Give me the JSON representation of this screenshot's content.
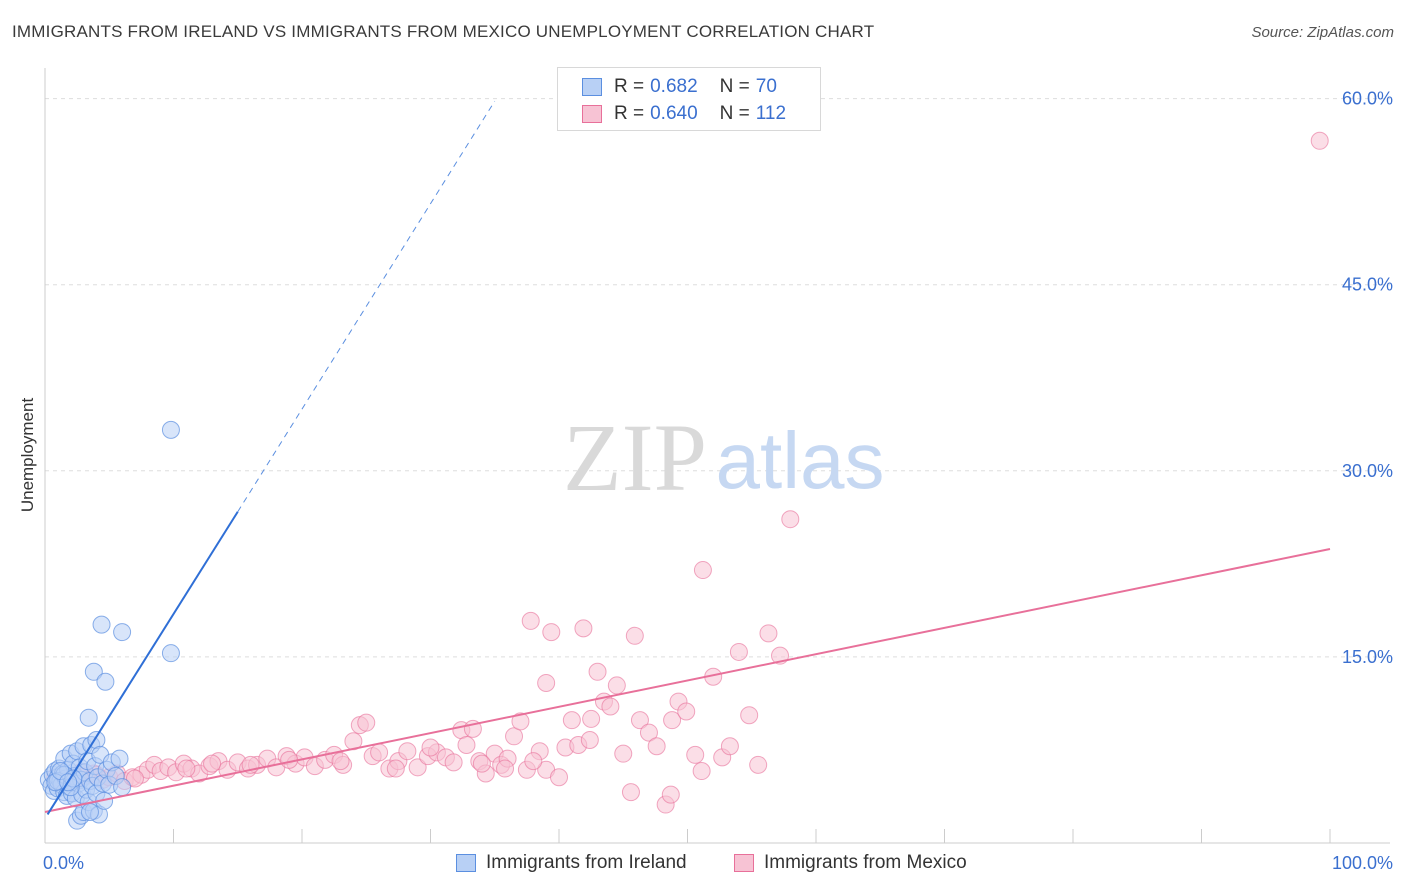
{
  "title": "IMMIGRANTS FROM IRELAND VS IMMIGRANTS FROM MEXICO UNEMPLOYMENT CORRELATION CHART",
  "source": "Source: ZipAtlas.com",
  "watermark": {
    "zip": "ZIP",
    "atlas": "atlas"
  },
  "legend_top": {
    "ireland": {
      "r_label": "R =",
      "r_value": "0.682",
      "n_label": "N =",
      "n_value": "70"
    },
    "mexico": {
      "r_label": "R =",
      "r_value": "0.640",
      "n_label": "N =",
      "n_value": "112"
    }
  },
  "legend_bottom": {
    "ireland": "Immigrants from Ireland",
    "mexico": "Immigrants from Mexico"
  },
  "colors": {
    "ireland": "#5b8fe0",
    "ireland_fill": "#b8d0f5",
    "mexico": "#e8709a",
    "mexico_fill": "#f7c3d4",
    "tick_text": "#3a6fcf",
    "grid": "#dddddd"
  },
  "chart_data": {
    "type": "scatter",
    "xlabel": "",
    "ylabel": "Unemployment",
    "xlim": [
      0,
      100
    ],
    "ylim": [
      0,
      62
    ],
    "x_tick_labels": [
      "0.0%",
      "100.0%"
    ],
    "y_ticks": [
      15,
      30,
      45,
      60
    ],
    "y_tick_labels": [
      "15.0%",
      "30.0%",
      "45.0%",
      "60.0%"
    ],
    "grid": true,
    "series": [
      {
        "name": "Immigrants from Ireland",
        "trend": {
          "x0": 0.2,
          "y0": 2.3,
          "x1": 15.0,
          "y1": 26.7,
          "dash_to_x": 35.0,
          "dash_to_y": 59.8
        },
        "points": [
          [
            0.3,
            5.1
          ],
          [
            0.5,
            4.6
          ],
          [
            0.6,
            5.5
          ],
          [
            0.7,
            4.2
          ],
          [
            0.8,
            5.8
          ],
          [
            0.9,
            4.9
          ],
          [
            1.0,
            5.3
          ],
          [
            1.0,
            4.4
          ],
          [
            1.1,
            6.0
          ],
          [
            1.2,
            5.0
          ],
          [
            1.3,
            4.7
          ],
          [
            1.4,
            5.6
          ],
          [
            1.5,
            4.1
          ],
          [
            1.5,
            6.8
          ],
          [
            1.6,
            5.2
          ],
          [
            1.7,
            3.8
          ],
          [
            1.8,
            5.9
          ],
          [
            1.9,
            4.5
          ],
          [
            2.0,
            7.2
          ],
          [
            2.0,
            5.0
          ],
          [
            2.1,
            4.0
          ],
          [
            2.2,
            6.4
          ],
          [
            2.3,
            5.4
          ],
          [
            2.4,
            3.6
          ],
          [
            2.5,
            7.4
          ],
          [
            2.5,
            1.8
          ],
          [
            2.6,
            4.8
          ],
          [
            2.7,
            6.1
          ],
          [
            2.8,
            5.1
          ],
          [
            2.8,
            2.2
          ],
          [
            2.9,
            3.9
          ],
          [
            3.0,
            7.8
          ],
          [
            3.0,
            2.5
          ],
          [
            3.1,
            5.7
          ],
          [
            3.2,
            4.3
          ],
          [
            3.3,
            6.6
          ],
          [
            3.4,
            3.3
          ],
          [
            3.4,
            10.1
          ],
          [
            3.5,
            5.0
          ],
          [
            3.6,
            7.9
          ],
          [
            3.7,
            4.6
          ],
          [
            3.8,
            13.8
          ],
          [
            3.8,
            2.6
          ],
          [
            3.9,
            6.2
          ],
          [
            4.0,
            4.0
          ],
          [
            4.0,
            8.3
          ],
          [
            4.1,
            5.3
          ],
          [
            4.2,
            2.3
          ],
          [
            4.3,
            7.1
          ],
          [
            4.4,
            17.6
          ],
          [
            4.5,
            4.8
          ],
          [
            4.6,
            3.4
          ],
          [
            4.7,
            13.0
          ],
          [
            4.8,
            5.9
          ],
          [
            5.0,
            4.7
          ],
          [
            5.2,
            6.5
          ],
          [
            5.5,
            5.4
          ],
          [
            5.8,
            6.8
          ],
          [
            6.0,
            4.5
          ],
          [
            6.0,
            17.0
          ],
          [
            1.0,
            5.0
          ],
          [
            1.5,
            5.5
          ],
          [
            2.0,
            4.5
          ],
          [
            0.8,
            4.9
          ],
          [
            1.2,
            5.8
          ],
          [
            2.2,
            5.2
          ],
          [
            9.8,
            33.3
          ],
          [
            9.8,
            15.3
          ],
          [
            1.8,
            4.9
          ],
          [
            3.5,
            2.5
          ]
        ]
      },
      {
        "name": "Immigrants from Mexico",
        "trend": {
          "x0": 0.0,
          "y0": 2.5,
          "x1": 100.0,
          "y1": 23.7
        },
        "points": [
          [
            0.8,
            5.3
          ],
          [
            1.5,
            5.0
          ],
          [
            2.0,
            4.8
          ],
          [
            2.5,
            5.2
          ],
          [
            3.2,
            5.4
          ],
          [
            3.8,
            5.6
          ],
          [
            4.5,
            5.1
          ],
          [
            5.0,
            5.3
          ],
          [
            5.6,
            5.6
          ],
          [
            6.2,
            5.0
          ],
          [
            6.8,
            5.3
          ],
          [
            7.5,
            5.5
          ],
          [
            8.0,
            5.9
          ],
          [
            8.5,
            6.3
          ],
          [
            9.0,
            5.8
          ],
          [
            9.6,
            6.1
          ],
          [
            10.2,
            5.7
          ],
          [
            10.8,
            6.4
          ],
          [
            11.4,
            6.0
          ],
          [
            12.0,
            5.6
          ],
          [
            12.8,
            6.2
          ],
          [
            13.5,
            6.6
          ],
          [
            14.2,
            5.9
          ],
          [
            15.0,
            6.5
          ],
          [
            15.8,
            6.0
          ],
          [
            16.5,
            6.3
          ],
          [
            17.3,
            6.8
          ],
          [
            18.0,
            6.1
          ],
          [
            18.8,
            7.0
          ],
          [
            19.5,
            6.4
          ],
          [
            20.2,
            6.9
          ],
          [
            21.0,
            6.2
          ],
          [
            21.8,
            6.7
          ],
          [
            22.5,
            7.1
          ],
          [
            23.2,
            6.3
          ],
          [
            24.0,
            8.2
          ],
          [
            24.5,
            9.5
          ],
          [
            25.0,
            9.7
          ],
          [
            25.5,
            7.0
          ],
          [
            26.0,
            7.3
          ],
          [
            26.8,
            6.0
          ],
          [
            27.5,
            6.6
          ],
          [
            28.2,
            7.4
          ],
          [
            29.0,
            6.1
          ],
          [
            29.8,
            7.0
          ],
          [
            30.5,
            7.3
          ],
          [
            31.2,
            6.9
          ],
          [
            31.8,
            6.5
          ],
          [
            32.4,
            9.1
          ],
          [
            32.8,
            7.9
          ],
          [
            33.3,
            9.2
          ],
          [
            33.8,
            6.6
          ],
          [
            34.3,
            5.6
          ],
          [
            35.0,
            7.2
          ],
          [
            35.5,
            6.3
          ],
          [
            36.0,
            6.8
          ],
          [
            36.5,
            8.6
          ],
          [
            37.0,
            9.8
          ],
          [
            37.5,
            5.9
          ],
          [
            37.8,
            17.9
          ],
          [
            38.5,
            7.4
          ],
          [
            39.0,
            5.9
          ],
          [
            39.4,
            17.0
          ],
          [
            39.0,
            12.9
          ],
          [
            40.0,
            5.3
          ],
          [
            40.5,
            7.7
          ],
          [
            41.0,
            9.9
          ],
          [
            41.5,
            7.9
          ],
          [
            41.9,
            17.3
          ],
          [
            42.4,
            8.3
          ],
          [
            43.0,
            13.8
          ],
          [
            43.5,
            11.4
          ],
          [
            44.0,
            11.0
          ],
          [
            44.5,
            12.7
          ],
          [
            45.0,
            7.2
          ],
          [
            45.6,
            4.1
          ],
          [
            45.9,
            16.7
          ],
          [
            46.3,
            9.9
          ],
          [
            47.0,
            8.9
          ],
          [
            47.6,
            7.8
          ],
          [
            48.3,
            3.1
          ],
          [
            48.8,
            9.9
          ],
          [
            49.3,
            11.4
          ],
          [
            49.9,
            10.6
          ],
          [
            50.6,
            7.1
          ],
          [
            51.1,
            5.8
          ],
          [
            52.0,
            13.4
          ],
          [
            52.7,
            6.9
          ],
          [
            53.3,
            7.8
          ],
          [
            54.0,
            15.4
          ],
          [
            54.8,
            10.3
          ],
          [
            55.5,
            6.3
          ],
          [
            56.3,
            16.9
          ],
          [
            57.2,
            15.1
          ],
          [
            51.2,
            22.0
          ],
          [
            58.0,
            26.1
          ],
          [
            99.2,
            56.6
          ],
          [
            48.7,
            3.9
          ],
          [
            42.5,
            10.0
          ],
          [
            38.0,
            6.6
          ],
          [
            35.8,
            6.0
          ],
          [
            34.0,
            6.4
          ],
          [
            30.0,
            7.7
          ],
          [
            27.3,
            6.0
          ],
          [
            23.0,
            6.6
          ],
          [
            19.0,
            6.7
          ],
          [
            16.0,
            6.3
          ],
          [
            13.0,
            6.4
          ],
          [
            11.0,
            6.0
          ],
          [
            7.0,
            5.2
          ],
          [
            4.0,
            5.5
          ],
          [
            2.8,
            5.7
          ]
        ]
      }
    ]
  }
}
